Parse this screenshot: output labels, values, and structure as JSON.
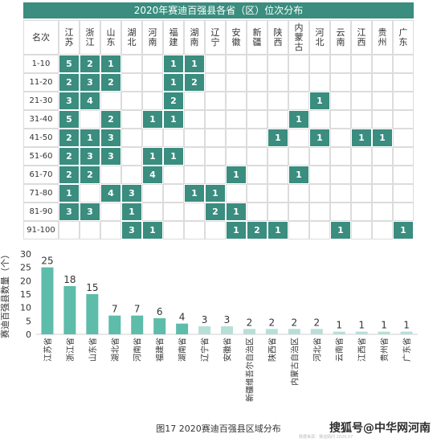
{
  "grid_title": "2020年赛迪百强县各省（区）位次分布",
  "corner_label": "名次",
  "provinces": [
    "江苏",
    "浙江",
    "山东",
    "湖北",
    "河南",
    "福建",
    "湖南",
    "辽宁",
    "安徽",
    "新疆",
    "陕西",
    "内蒙古",
    "河北",
    "云南",
    "江西",
    "贵州",
    "广东"
  ],
  "rank_ranges": [
    "1-10",
    "11-20",
    "21-30",
    "31-40",
    "41-50",
    "51-60",
    "61-70",
    "71-80",
    "81-90",
    "91-100"
  ],
  "grid_values": [
    [
      "5",
      "2",
      "1",
      "",
      "",
      "1",
      "1",
      "",
      "",
      "",
      "",
      "",
      "",
      "",
      "",
      "",
      ""
    ],
    [
      "2",
      "3",
      "2",
      "",
      "",
      "1",
      "2",
      "",
      "",
      "",
      "",
      "",
      "",
      "",
      "",
      "",
      ""
    ],
    [
      "3",
      "4",
      "",
      "",
      "",
      "2",
      "",
      "",
      "",
      "",
      "",
      "",
      "1",
      "",
      "",
      "",
      ""
    ],
    [
      "5",
      "",
      "2",
      "",
      "1",
      "1",
      "",
      "",
      "",
      "",
      "",
      "1",
      "",
      "",
      "",
      "",
      ""
    ],
    [
      "2",
      "1",
      "3",
      "",
      "",
      "",
      "",
      "",
      "",
      "",
      "1",
      "",
      "1",
      "",
      "1",
      "1",
      ""
    ],
    [
      "2",
      "3",
      "3",
      "",
      "1",
      "1",
      "",
      "",
      "",
      "",
      "",
      "",
      "",
      "",
      "",
      "",
      ""
    ],
    [
      "2",
      "2",
      "",
      "",
      "4",
      "",
      "",
      "",
      "1",
      "",
      "",
      "1",
      "",
      "",
      "",
      "",
      ""
    ],
    [
      "1",
      "",
      "4",
      "3",
      "",
      "",
      "1",
      "1",
      "",
      "",
      "",
      "",
      "",
      "",
      "",
      "",
      ""
    ],
    [
      "3",
      "3",
      "",
      "1",
      "",
      "",
      "",
      "2",
      "1",
      "",
      "",
      "",
      "",
      "",
      "",
      "",
      ""
    ],
    [
      "",
      "",
      "",
      "3",
      "1",
      "",
      "",
      "",
      "1",
      "2",
      "1",
      "",
      "",
      "1",
      "",
      "",
      "1"
    ]
  ],
  "colors": {
    "header": "#3a8d7f",
    "cell": "#3a8d7f",
    "cell_empty": "#ffffff",
    "bar_dark": "#5dbcaa",
    "bar_light": "#b7dfd8"
  },
  "chart_data": {
    "type": "bar",
    "ylabel": "赛迪百强县数量（个）",
    "ylim": [
      0,
      30
    ],
    "yticks": [
      0,
      5,
      10,
      15,
      20,
      25,
      30
    ],
    "categories": [
      "江苏省",
      "浙江省",
      "山东省",
      "湖北省",
      "河南省",
      "福建省",
      "湖南省",
      "辽宁省",
      "安徽省",
      "新疆维吾尔自治区",
      "陕西省",
      "内蒙古自治区",
      "河北省",
      "云南省",
      "江西省",
      "贵州省",
      "广东省"
    ],
    "values": [
      25,
      18,
      15,
      7,
      7,
      6,
      4,
      3,
      3,
      2,
      2,
      2,
      2,
      1,
      1,
      1,
      1
    ],
    "grid": false
  },
  "caption": "图17  2020赛迪百强县区域分布",
  "source_note": "数据来源：赛迪顾问 2020,07",
  "watermark": "搜狐号@中华网河南"
}
